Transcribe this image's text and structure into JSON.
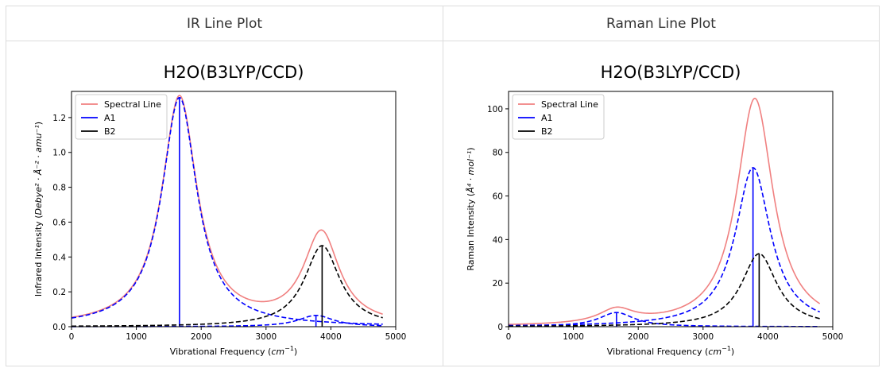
{
  "panels": [
    {
      "header": "IR Line Plot"
    },
    {
      "header": "Raman Line Plot"
    }
  ],
  "chart_data": [
    {
      "type": "line",
      "title": "H2O(B3LYP/CCD)",
      "xlabel": "Vibrational Frequency",
      "xlabel_unit": "cm",
      "xlabel_unit_sup": "−1",
      "ylabel_prefix": "Infrared Intensity (",
      "ylabel_math": "Debye² · Å⁻² · amu⁻¹",
      "ylabel_suffix": ")",
      "xlim": [
        0,
        5000
      ],
      "ylim": [
        0,
        1.35
      ],
      "xticks": [
        0,
        1000,
        2000,
        3000,
        4000,
        5000
      ],
      "yticks": [
        0.0,
        0.2,
        0.4,
        0.6,
        0.8,
        1.0,
        1.2
      ],
      "ytick_labels": [
        "0.0",
        "0.2",
        "0.4",
        "0.6",
        "0.8",
        "1.0",
        "1.2"
      ],
      "x_range": [
        0,
        4800
      ],
      "legend_position": "top-left",
      "grid": false,
      "series": [
        {
          "name": "Spectral Line",
          "color": "#f08080",
          "style": "solid",
          "kind": "total"
        },
        {
          "name": "A1",
          "color": "#0000ff",
          "style": "dashed",
          "kind": "peaks",
          "peaks": [
            {
              "x": 1665,
              "height": 1.315,
              "gamma": 330
            },
            {
              "x": 3770,
              "height": 0.065,
              "gamma": 330
            }
          ]
        },
        {
          "name": "B2",
          "color": "#000000",
          "style": "dashed",
          "kind": "peaks",
          "peaks": [
            {
              "x": 3865,
              "height": 0.465,
              "gamma": 330
            }
          ]
        }
      ]
    },
    {
      "type": "line",
      "title": "H2O(B3LYP/CCD)",
      "xlabel": "Vibrational Frequency",
      "xlabel_unit": "cm",
      "xlabel_unit_sup": "−1",
      "ylabel_prefix": "Raman Intensity (",
      "ylabel_math": "Å⁴ · mol⁻¹",
      "ylabel_suffix": ")",
      "xlim": [
        0,
        5000
      ],
      "ylim": [
        0,
        108
      ],
      "xticks": [
        0,
        1000,
        2000,
        3000,
        4000,
        5000
      ],
      "yticks": [
        0,
        20,
        40,
        60,
        80,
        100
      ],
      "ytick_labels": [
        "0",
        "20",
        "40",
        "60",
        "80",
        "100"
      ],
      "x_range": [
        0,
        4800
      ],
      "legend_position": "top-left",
      "grid": false,
      "series": [
        {
          "name": "Spectral Line",
          "color": "#f08080",
          "style": "solid",
          "kind": "total"
        },
        {
          "name": "A1",
          "color": "#0000ff",
          "style": "dashed",
          "kind": "peaks",
          "peaks": [
            {
              "x": 1665,
              "height": 6.5,
              "gamma": 330
            },
            {
              "x": 3770,
              "height": 73,
              "gamma": 330
            }
          ]
        },
        {
          "name": "B2",
          "color": "#000000",
          "style": "dashed",
          "kind": "peaks",
          "peaks": [
            {
              "x": 3865,
              "height": 33.5,
              "gamma": 330
            }
          ]
        }
      ]
    }
  ]
}
